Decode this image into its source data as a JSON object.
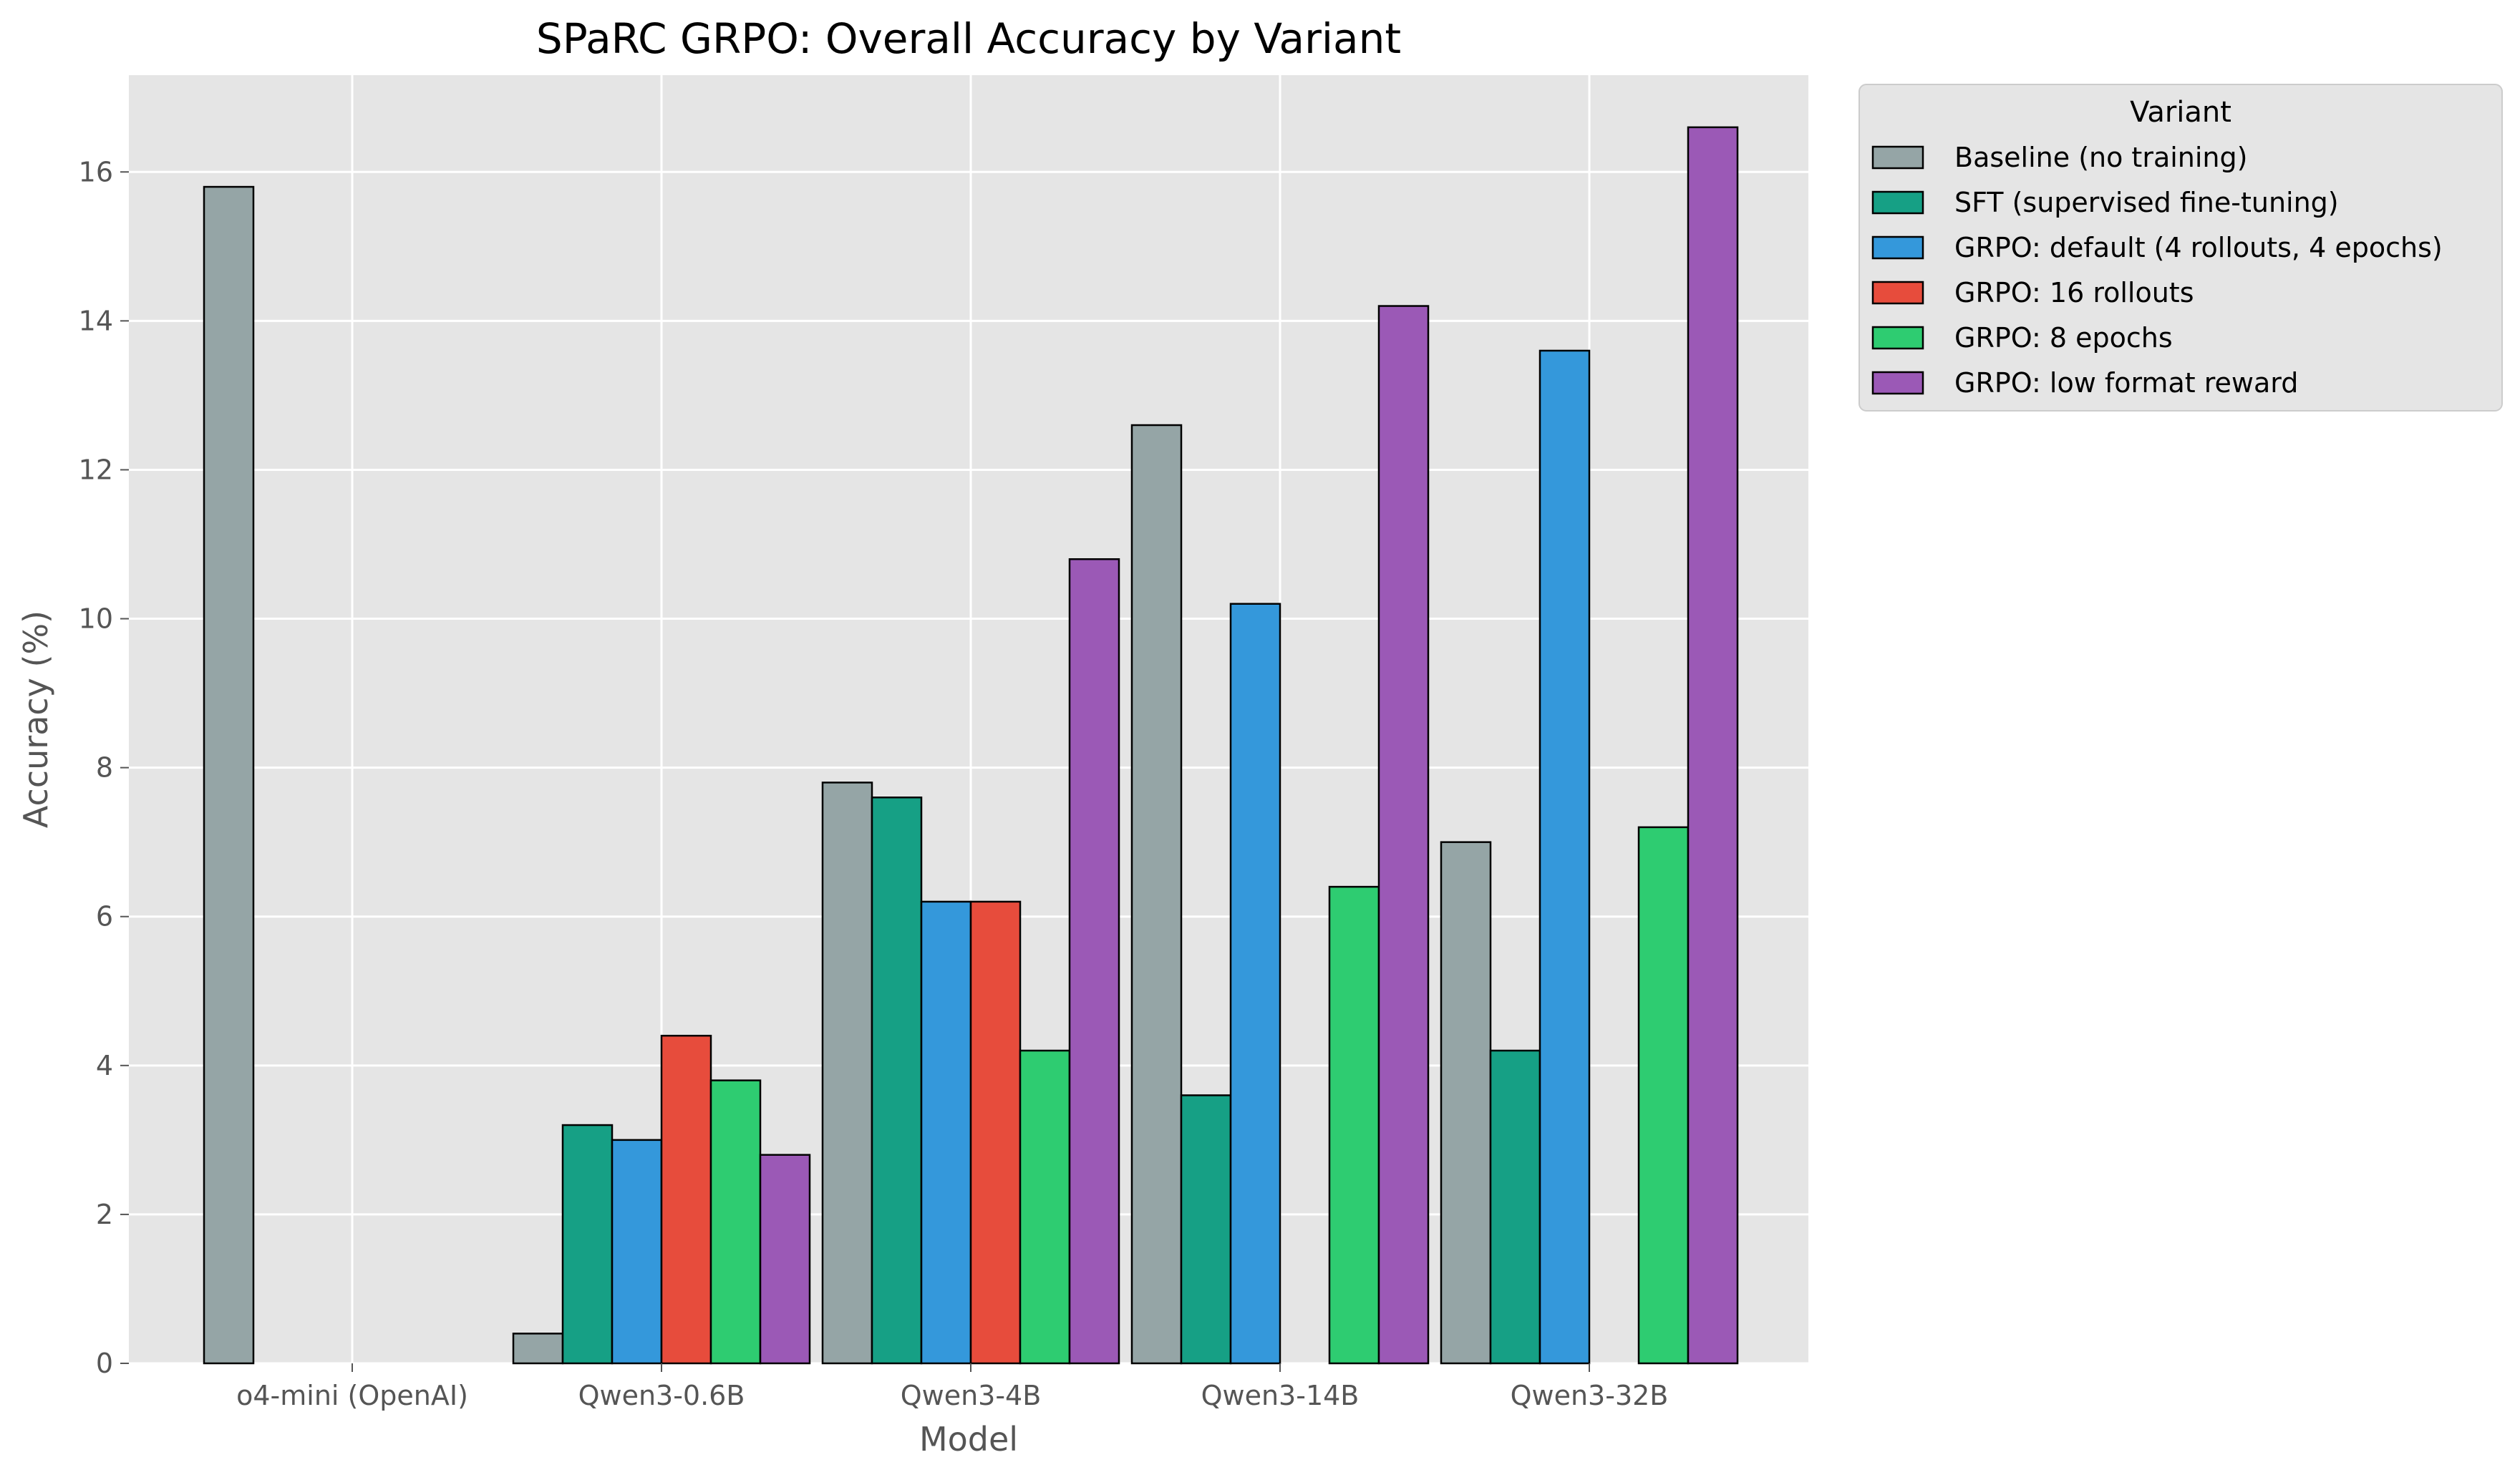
{
  "chart_data": {
    "type": "bar",
    "title": "SPaRC GRPO: Overall Accuracy by Variant",
    "xlabel": "Model",
    "ylabel": "Accuracy (%)",
    "ylim": [
      0,
      17.3
    ],
    "yticks": [
      0,
      2,
      4,
      6,
      8,
      10,
      12,
      14,
      16
    ],
    "grid": true,
    "legend_title": "Variant",
    "legend_position": "outside-top-right",
    "categories": [
      "o4-mini (OpenAI)",
      "Qwen3-0.6B",
      "Qwen3-4B",
      "Qwen3-14B",
      "Qwen3-32B"
    ],
    "series": [
      {
        "name": "Baseline (no training)",
        "color": "#95a5a6",
        "values": [
          15.8,
          0.4,
          7.8,
          12.6,
          7.0
        ]
      },
      {
        "name": "SFT (supervised fine-tuning)",
        "color": "#16a085",
        "values": [
          null,
          3.2,
          7.6,
          3.6,
          4.2
        ]
      },
      {
        "name": "GRPO: default (4 rollouts, 4 epochs)",
        "color": "#3498db",
        "values": [
          null,
          3.0,
          6.2,
          10.2,
          13.6
        ]
      },
      {
        "name": "GRPO: 16 rollouts",
        "color": "#e74c3c",
        "values": [
          null,
          4.4,
          6.2,
          null,
          null
        ]
      },
      {
        "name": "GRPO: 8 epochs",
        "color": "#2ecc71",
        "values": [
          null,
          3.8,
          4.2,
          6.4,
          7.2
        ]
      },
      {
        "name": "GRPO: low format reward",
        "color": "#9b59b6",
        "values": [
          null,
          2.8,
          10.8,
          14.2,
          16.6
        ]
      }
    ]
  }
}
